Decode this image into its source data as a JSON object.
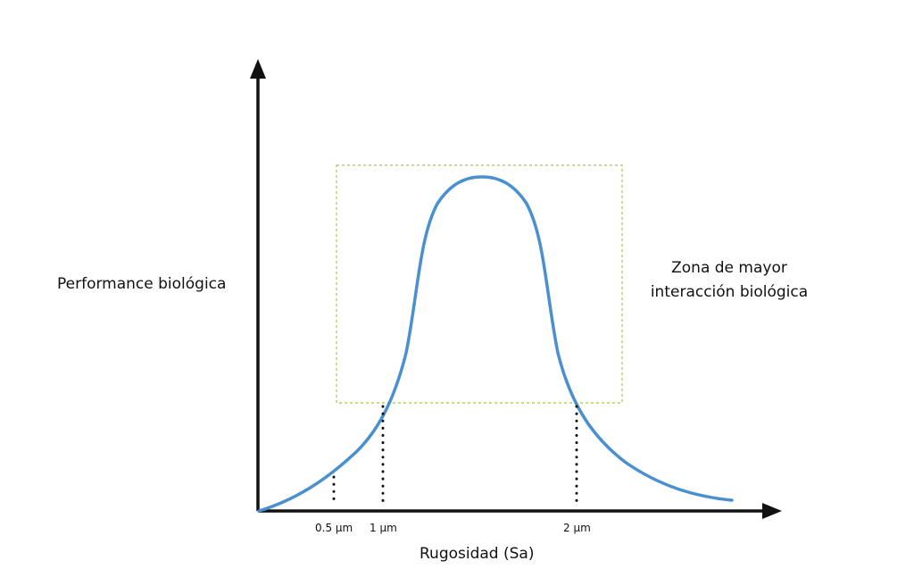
{
  "labels": {
    "y_axis": "Performance biológica",
    "x_axis": "Rugosidad (Sa)",
    "zone_line1": "Zona de mayor",
    "zone_line2": "interacción biológica"
  },
  "ticks": [
    {
      "label": "0.5 μm"
    },
    {
      "label": "1 μm"
    },
    {
      "label": "2 μm"
    }
  ],
  "colors": {
    "curve": "#4a8fcf",
    "axis": "#111111",
    "zone_box": "#a9c34a",
    "dots": "#111111"
  }
}
